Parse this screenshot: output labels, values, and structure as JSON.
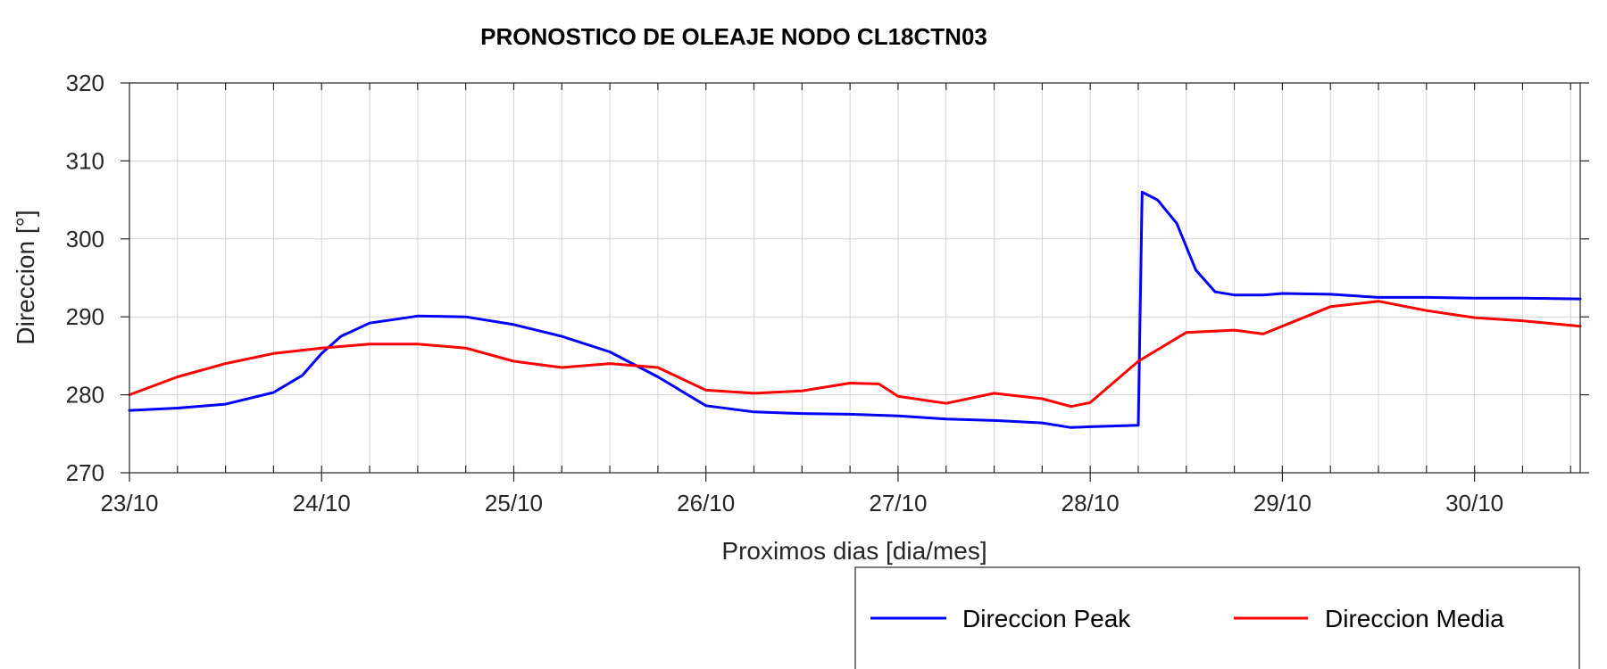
{
  "chart_data": {
    "type": "line",
    "title": "PRONOSTICO DE OLEAJE NODO CL18CTN03",
    "xlabel": "Proximos dias [dia/mes]",
    "ylabel": "Direccion [°]",
    "xlim": [
      0,
      7.55
    ],
    "ylim": [
      270,
      320
    ],
    "yticks": [
      270,
      280,
      290,
      300,
      310,
      320
    ],
    "xticks": [
      {
        "x": 0,
        "label": "23/10"
      },
      {
        "x": 1,
        "label": "24/10"
      },
      {
        "x": 2,
        "label": "25/10"
      },
      {
        "x": 3,
        "label": "26/10"
      },
      {
        "x": 4,
        "label": "27/10"
      },
      {
        "x": 5,
        "label": "28/10"
      },
      {
        "x": 6,
        "label": "29/10"
      },
      {
        "x": 7,
        "label": "30/10"
      }
    ],
    "grid": true,
    "legend_position": "bottom-right outside",
    "series": [
      {
        "name": "Direccion Peak",
        "color": "#0000ff",
        "x": [
          0,
          0.25,
          0.5,
          0.75,
          0.9,
          1.0,
          1.1,
          1.25,
          1.5,
          1.75,
          2.0,
          2.25,
          2.5,
          2.75,
          3.0,
          3.25,
          3.5,
          3.75,
          4.0,
          4.25,
          4.5,
          4.75,
          4.9,
          5.0,
          5.25,
          5.27,
          5.35,
          5.45,
          5.55,
          5.65,
          5.75,
          5.9,
          6.0,
          6.25,
          6.5,
          6.75,
          7.0,
          7.25,
          7.55
        ],
        "y": [
          278,
          278.3,
          278.8,
          280.3,
          282.5,
          285.3,
          287.5,
          289.2,
          290.1,
          290,
          289,
          287.5,
          285.5,
          282.3,
          278.6,
          277.8,
          277.6,
          277.5,
          277.3,
          276.9,
          276.7,
          276.4,
          275.8,
          275.9,
          276.1,
          306,
          305,
          302,
          296,
          293.2,
          292.8,
          292.8,
          293,
          292.9,
          292.5,
          292.5,
          292.4,
          292.4,
          292.3
        ]
      },
      {
        "name": "Direccion Media",
        "color": "#ff0000",
        "x": [
          0,
          0.25,
          0.5,
          0.75,
          1.0,
          1.25,
          1.5,
          1.75,
          2.0,
          2.25,
          2.5,
          2.75,
          3.0,
          3.25,
          3.5,
          3.75,
          3.9,
          4.0,
          4.25,
          4.5,
          4.75,
          4.9,
          5.0,
          5.25,
          5.5,
          5.75,
          5.9,
          6.0,
          6.25,
          6.5,
          6.75,
          7.0,
          7.25,
          7.55
        ],
        "y": [
          280,
          282.3,
          284,
          285.3,
          286,
          286.5,
          286.5,
          286,
          284.3,
          283.5,
          284,
          283.5,
          280.6,
          280.2,
          280.5,
          281.5,
          281.4,
          279.8,
          278.9,
          280.2,
          279.5,
          278.5,
          279,
          284.3,
          288,
          288.3,
          287.8,
          288.8,
          291.3,
          292,
          290.8,
          289.9,
          289.5,
          288.8
        ]
      }
    ]
  }
}
